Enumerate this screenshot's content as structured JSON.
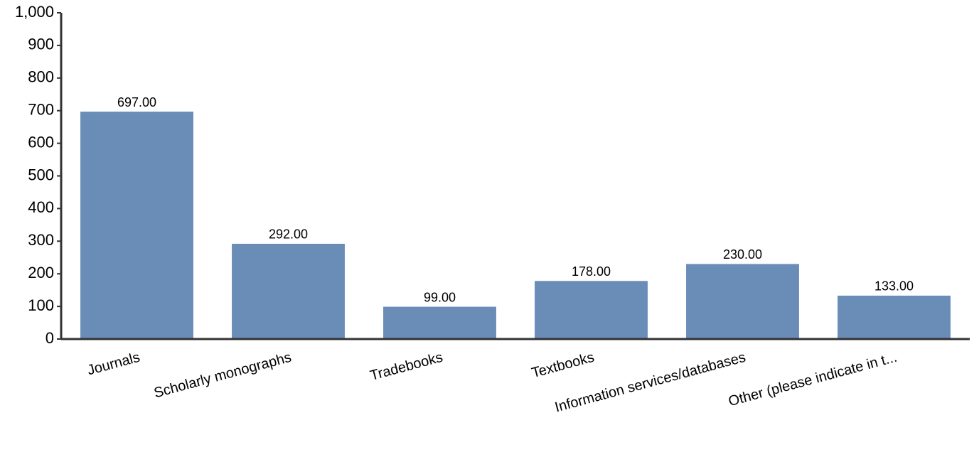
{
  "chart_data": {
    "type": "bar",
    "categories": [
      "Journals",
      "Scholarly monographs",
      "Tradebooks",
      "Textbooks",
      "Information services/databases",
      "Other (please indicate in t..."
    ],
    "values": [
      697,
      292,
      99,
      178,
      230,
      133
    ],
    "value_labels": [
      "697.00",
      "292.00",
      "99.00",
      "178.00",
      "230.00",
      "133.00"
    ],
    "color": "#6a8db8",
    "ylim": [
      0,
      1000
    ],
    "yticks": [
      0,
      100,
      200,
      300,
      400,
      500,
      600,
      700,
      800,
      900,
      {
        "value": 1000,
        "label": "1,000"
      }
    ],
    "grid": false
  }
}
